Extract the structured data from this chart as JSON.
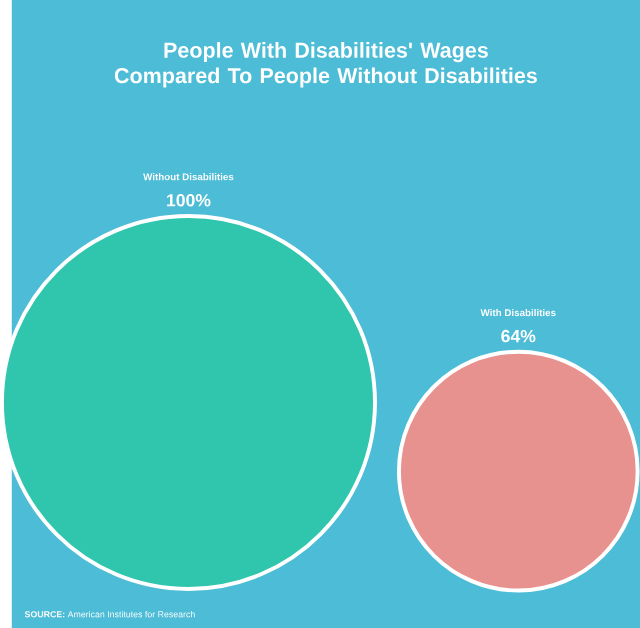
{
  "chart_data": {
    "type": "other",
    "title": "People With Disabilities' Wages Compared To People Without Disabilities",
    "categories": [
      "Without Disabilities",
      "With Disabilities"
    ],
    "values": [
      100,
      64
    ],
    "value_labels": [
      "100%",
      "64%"
    ],
    "colors": [
      "#2fc6ad",
      "#e8928f"
    ],
    "annotations": [
      "**SOURCE:** American Institutes for Research"
    ]
  }
}
